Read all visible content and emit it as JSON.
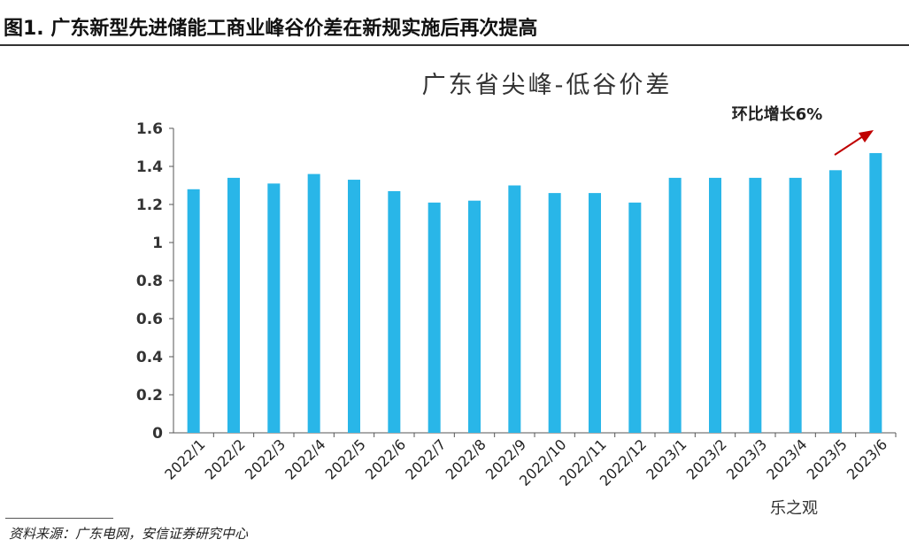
{
  "figure_title": "图1. 广东新型先进储能工商业峰谷价差在新规实施后再次提高",
  "source": "资料来源：广东电网，安信证券研究中心",
  "watermark": "乐之观",
  "chart_data": {
    "type": "bar",
    "title": "广东省尖峰-低谷价差",
    "annotation": "环比增长6%",
    "categories": [
      "2022/1",
      "2022/2",
      "2022/3",
      "2022/4",
      "2022/5",
      "2022/6",
      "2022/7",
      "2022/8",
      "2022/9",
      "2022/10",
      "2022/11",
      "2022/12",
      "2023/1",
      "2023/2",
      "2023/3",
      "2023/4",
      "2023/5",
      "2023/6"
    ],
    "values": [
      1.28,
      1.34,
      1.31,
      1.36,
      1.33,
      1.27,
      1.21,
      1.22,
      1.3,
      1.26,
      1.26,
      1.21,
      1.34,
      1.34,
      1.34,
      1.34,
      1.38,
      1.47
    ],
    "yticks": [
      "0",
      "0.2",
      "0.4",
      "0.6",
      "0.8",
      "1",
      "1.2",
      "1.4",
      "1.6"
    ],
    "ylim": [
      0,
      1.6
    ],
    "grid": false,
    "bar_color": "#29b6e8",
    "arrow_color": "#c00000"
  }
}
